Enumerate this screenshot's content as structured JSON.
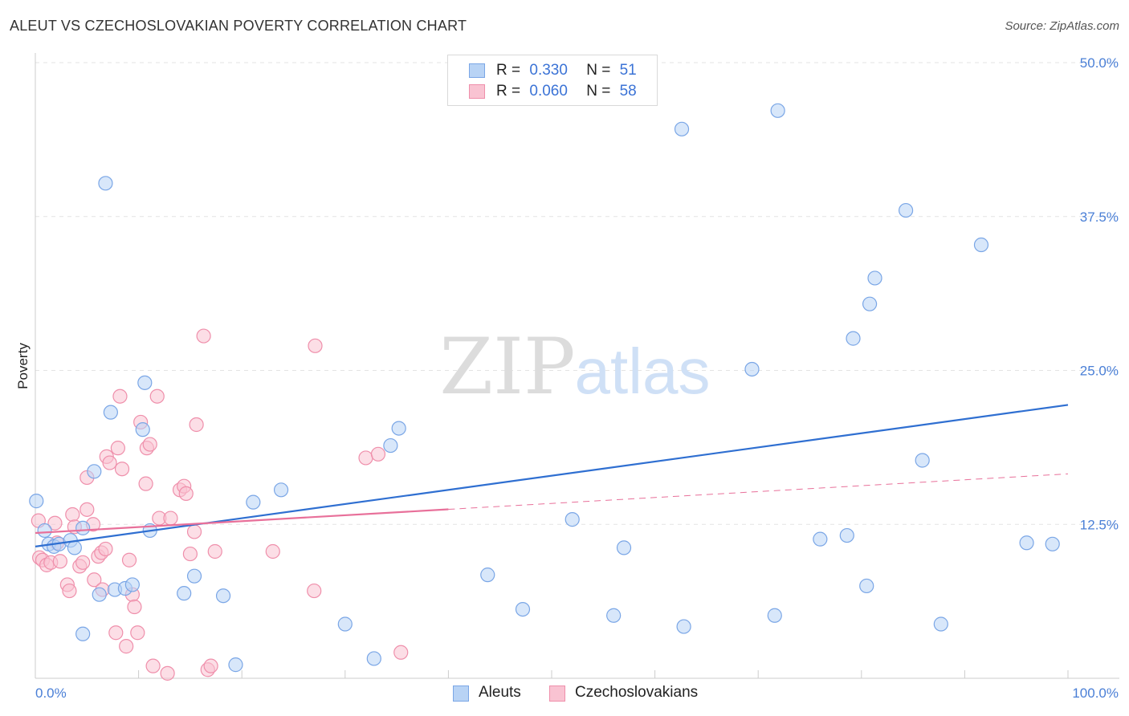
{
  "title": "ALEUT VS CZECHOSLOVAKIAN POVERTY CORRELATION CHART",
  "source": "Source: ZipAtlas.com",
  "watermark": {
    "zip": "ZIP",
    "atlas": "atlas"
  },
  "legend": {
    "rows": [
      {
        "r_label": "R =",
        "r_value": "0.330",
        "n_label": "N =",
        "n_value": "51"
      },
      {
        "r_label": "R =",
        "r_value": "0.060",
        "n_label": "N =",
        "n_value": "58"
      }
    ]
  },
  "colors": {
    "aleut_fill": "#b8d3f5",
    "aleut_stroke": "#7aa6e6",
    "aleut_line": "#2f6fd1",
    "czech_fill": "#f9c3d2",
    "czech_stroke": "#ef8fab",
    "czech_line": "#e8709a",
    "tick_text": "#4a7fd6",
    "grid": "#e3e3e3"
  },
  "chart_data": {
    "type": "scatter",
    "title": "ALEUT VS CZECHOSLOVAKIAN POVERTY CORRELATION CHART",
    "xlabel": "",
    "ylabel": "Poverty",
    "xlim": [
      0,
      100
    ],
    "ylim": [
      0,
      50
    ],
    "x_tick_labels": [
      "0.0%",
      "100.0%"
    ],
    "y_ticks": [
      12.5,
      25.0,
      37.5,
      50.0
    ],
    "y_tick_labels": [
      "12.5%",
      "25.0%",
      "37.5%",
      "50.0%"
    ],
    "grid": "horizontal dashed",
    "legend_position": "top-center",
    "series": [
      {
        "name": "Aleuts",
        "r": 0.33,
        "n": 51,
        "trend": {
          "x": [
            0,
            100
          ],
          "y": [
            10.7,
            22.2
          ],
          "dashed_from": null
        },
        "points": [
          [
            0.1,
            14.4
          ],
          [
            0.9,
            12.0
          ],
          [
            1.3,
            10.9
          ],
          [
            1.8,
            10.7
          ],
          [
            2.3,
            10.9
          ],
          [
            3.4,
            11.2
          ],
          [
            3.8,
            10.6
          ],
          [
            4.6,
            12.2
          ],
          [
            4.6,
            3.6
          ],
          [
            5.7,
            16.8
          ],
          [
            6.2,
            6.8
          ],
          [
            6.8,
            40.2
          ],
          [
            7.3,
            21.6
          ],
          [
            7.7,
            7.2
          ],
          [
            8.7,
            7.3
          ],
          [
            9.4,
            7.6
          ],
          [
            10.4,
            20.2
          ],
          [
            10.6,
            24.0
          ],
          [
            11.1,
            12.0
          ],
          [
            14.4,
            6.9
          ],
          [
            15.4,
            8.3
          ],
          [
            18.2,
            6.7
          ],
          [
            19.4,
            1.1
          ],
          [
            21.1,
            14.3
          ],
          [
            23.8,
            15.3
          ],
          [
            30.0,
            4.4
          ],
          [
            32.8,
            1.6
          ],
          [
            34.4,
            18.9
          ],
          [
            35.2,
            20.3
          ],
          [
            43.8,
            8.4
          ],
          [
            47.2,
            5.6
          ],
          [
            52.0,
            12.9
          ],
          [
            56.0,
            5.1
          ],
          [
            57.0,
            10.6
          ],
          [
            62.6,
            44.6
          ],
          [
            62.8,
            4.2
          ],
          [
            69.4,
            25.1
          ],
          [
            71.6,
            5.1
          ],
          [
            71.9,
            46.1
          ],
          [
            76.0,
            11.3
          ],
          [
            78.6,
            11.6
          ],
          [
            79.2,
            27.6
          ],
          [
            80.5,
            7.5
          ],
          [
            80.8,
            30.4
          ],
          [
            81.3,
            32.5
          ],
          [
            84.3,
            38.0
          ],
          [
            85.9,
            17.7
          ],
          [
            87.7,
            4.4
          ],
          [
            91.6,
            35.2
          ],
          [
            96.0,
            11.0
          ],
          [
            98.5,
            10.9
          ]
        ]
      },
      {
        "name": "Czechoslovakians",
        "r": 0.06,
        "n": 58,
        "trend": {
          "x": [
            0,
            100
          ],
          "y": [
            11.8,
            16.6
          ],
          "dashed_from": 40
        },
        "points": [
          [
            0.3,
            12.8
          ],
          [
            0.4,
            9.8
          ],
          [
            0.7,
            9.6
          ],
          [
            1.1,
            9.2
          ],
          [
            1.5,
            9.4
          ],
          [
            1.9,
            12.6
          ],
          [
            2.1,
            11.0
          ],
          [
            2.4,
            9.5
          ],
          [
            3.1,
            7.6
          ],
          [
            3.3,
            7.1
          ],
          [
            3.6,
            13.3
          ],
          [
            3.8,
            12.3
          ],
          [
            4.3,
            9.1
          ],
          [
            4.6,
            9.4
          ],
          [
            5.0,
            13.7
          ],
          [
            5.0,
            16.3
          ],
          [
            5.6,
            12.5
          ],
          [
            5.7,
            8.0
          ],
          [
            6.1,
            9.9
          ],
          [
            6.4,
            10.2
          ],
          [
            6.5,
            7.2
          ],
          [
            6.8,
            10.5
          ],
          [
            6.9,
            18.0
          ],
          [
            7.2,
            17.5
          ],
          [
            7.8,
            3.7
          ],
          [
            8.0,
            18.7
          ],
          [
            8.2,
            22.9
          ],
          [
            8.4,
            17.0
          ],
          [
            8.8,
            2.6
          ],
          [
            9.1,
            9.6
          ],
          [
            9.4,
            6.8
          ],
          [
            9.6,
            5.8
          ],
          [
            9.9,
            3.7
          ],
          [
            10.2,
            20.8
          ],
          [
            10.7,
            15.8
          ],
          [
            10.8,
            18.7
          ],
          [
            11.1,
            19.0
          ],
          [
            11.4,
            1.0
          ],
          [
            11.8,
            22.9
          ],
          [
            12.0,
            13.0
          ],
          [
            12.8,
            0.4
          ],
          [
            13.1,
            13.0
          ],
          [
            14.0,
            15.3
          ],
          [
            14.4,
            15.6
          ],
          [
            14.6,
            15.0
          ],
          [
            15.0,
            10.1
          ],
          [
            15.4,
            11.9
          ],
          [
            15.6,
            20.6
          ],
          [
            16.3,
            27.8
          ],
          [
            16.7,
            0.7
          ],
          [
            17.0,
            1.0
          ],
          [
            17.4,
            10.3
          ],
          [
            23.0,
            10.3
          ],
          [
            27.0,
            7.1
          ],
          [
            27.1,
            27.0
          ],
          [
            32.0,
            17.9
          ],
          [
            33.2,
            18.2
          ],
          [
            35.4,
            2.1
          ]
        ]
      }
    ]
  }
}
